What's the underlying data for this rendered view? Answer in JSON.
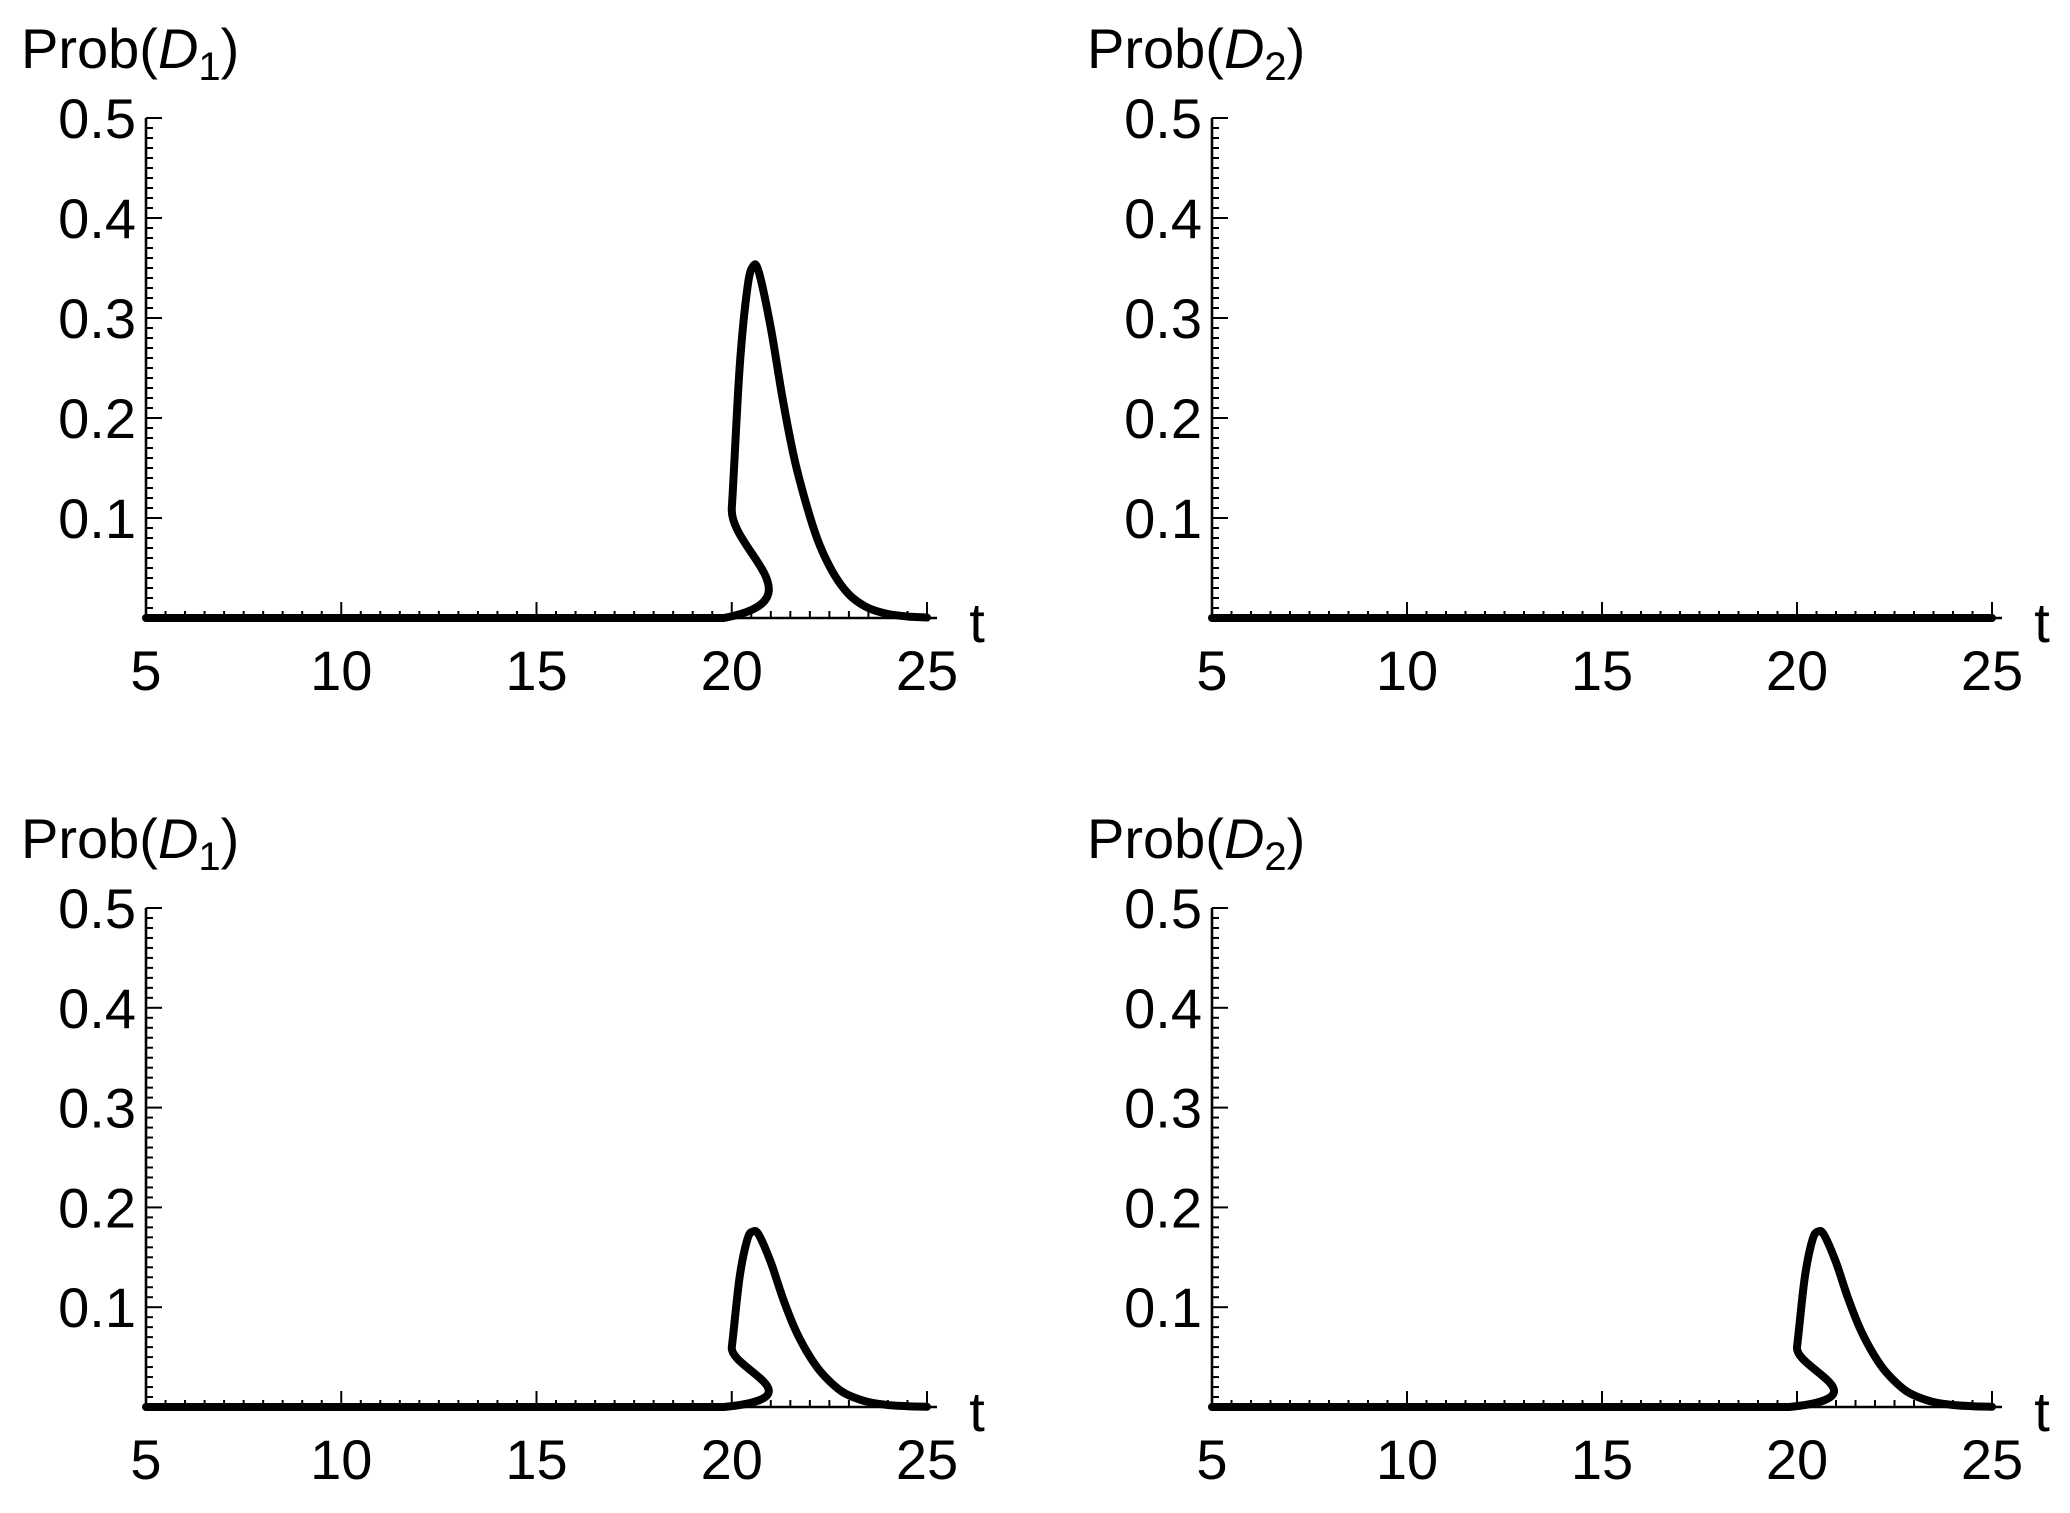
{
  "chart_data": [
    {
      "type": "line",
      "ylabel": {
        "prefix": "Prob(",
        "var": "D",
        "sub": "1",
        "suffix": ")"
      },
      "xlabel": "t",
      "xlim": [
        5,
        25
      ],
      "ylim": [
        0,
        0.5
      ],
      "xticks": [
        5,
        10,
        15,
        20,
        25
      ],
      "yticks": [
        0.1,
        0.2,
        0.3,
        0.4,
        0.5
      ],
      "xtick_labels": [
        "5",
        "10",
        "15",
        "20",
        "25"
      ],
      "ytick_labels": [
        "0.1",
        "0.2",
        "0.3",
        "0.4",
        "0.5"
      ],
      "series": [
        {
          "x": [
            5,
            19.8,
            20.0,
            20.2,
            20.4,
            20.55,
            20.7,
            21.0,
            21.3,
            21.6,
            21.9,
            22.2,
            22.5,
            22.8,
            23.1,
            23.5,
            24.0,
            24.5,
            25
          ],
          "y": [
            0,
            0,
            0.11,
            0.25,
            0.33,
            0.352,
            0.345,
            0.29,
            0.22,
            0.16,
            0.115,
            0.078,
            0.052,
            0.033,
            0.02,
            0.01,
            0.004,
            0.0015,
            0.0005
          ]
        }
      ]
    },
    {
      "type": "line",
      "ylabel": {
        "prefix": "Prob(",
        "var": "D",
        "sub": "2",
        "suffix": ")"
      },
      "xlabel": "t",
      "xlim": [
        5,
        25
      ],
      "ylim": [
        0,
        0.5
      ],
      "xticks": [
        5,
        10,
        15,
        20,
        25
      ],
      "yticks": [
        0.1,
        0.2,
        0.3,
        0.4,
        0.5
      ],
      "xtick_labels": [
        "5",
        "10",
        "15",
        "20",
        "25"
      ],
      "ytick_labels": [
        "0.1",
        "0.2",
        "0.3",
        "0.4",
        "0.5"
      ],
      "series": [
        {
          "x": [
            5,
            25
          ],
          "y": [
            0,
            0
          ]
        }
      ]
    },
    {
      "type": "line",
      "ylabel": {
        "prefix": "Prob(",
        "var": "D",
        "sub": "1",
        "suffix": ")"
      },
      "xlabel": "t",
      "xlim": [
        5,
        25
      ],
      "ylim": [
        0,
        0.5
      ],
      "xticks": [
        5,
        10,
        15,
        20,
        25
      ],
      "yticks": [
        0.1,
        0.2,
        0.3,
        0.4,
        0.5
      ],
      "xtick_labels": [
        "5",
        "10",
        "15",
        "20",
        "25"
      ],
      "ytick_labels": [
        "0.1",
        "0.2",
        "0.3",
        "0.4",
        "0.5"
      ],
      "series": [
        {
          "x": [
            5,
            19.8,
            20.0,
            20.2,
            20.4,
            20.55,
            20.7,
            21.0,
            21.3,
            21.6,
            21.9,
            22.2,
            22.5,
            22.8,
            23.1,
            23.5,
            24.0,
            24.5,
            25
          ],
          "y": [
            0,
            0,
            0.06,
            0.13,
            0.168,
            0.176,
            0.172,
            0.145,
            0.11,
            0.08,
            0.057,
            0.039,
            0.026,
            0.016,
            0.01,
            0.005,
            0.002,
            0.0008,
            0.0003
          ]
        }
      ]
    },
    {
      "type": "line",
      "ylabel": {
        "prefix": "Prob(",
        "var": "D",
        "sub": "2",
        "suffix": ")"
      },
      "xlabel": "t",
      "xlim": [
        5,
        25
      ],
      "ylim": [
        0,
        0.5
      ],
      "xticks": [
        5,
        10,
        15,
        20,
        25
      ],
      "yticks": [
        0.1,
        0.2,
        0.3,
        0.4,
        0.5
      ],
      "xtick_labels": [
        "5",
        "10",
        "15",
        "20",
        "25"
      ],
      "ytick_labels": [
        "0.1",
        "0.2",
        "0.3",
        "0.4",
        "0.5"
      ],
      "series": [
        {
          "x": [
            5,
            19.8,
            20.0,
            20.2,
            20.4,
            20.55,
            20.7,
            21.0,
            21.3,
            21.6,
            21.9,
            22.2,
            22.5,
            22.8,
            23.1,
            23.5,
            24.0,
            24.5,
            25
          ],
          "y": [
            0,
            0,
            0.06,
            0.13,
            0.168,
            0.176,
            0.172,
            0.145,
            0.11,
            0.08,
            0.057,
            0.039,
            0.026,
            0.016,
            0.01,
            0.005,
            0.002,
            0.0008,
            0.0003
          ]
        }
      ]
    }
  ]
}
